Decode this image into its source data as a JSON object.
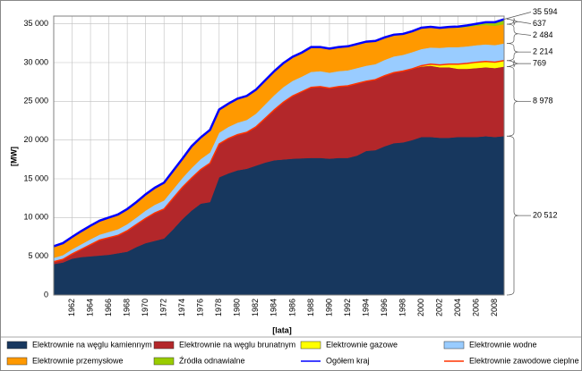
{
  "chart_data": {
    "type": "stacked_area",
    "xlabel": "[lata]",
    "ylabel": "[MW]",
    "x": [
      1960,
      1961,
      1962,
      1963,
      1964,
      1965,
      1966,
      1967,
      1968,
      1969,
      1970,
      1971,
      1972,
      1973,
      1974,
      1975,
      1976,
      1977,
      1978,
      1979,
      1980,
      1981,
      1982,
      1983,
      1984,
      1985,
      1986,
      1987,
      1988,
      1989,
      1990,
      1991,
      1992,
      1993,
      1994,
      1995,
      1996,
      1997,
      1998,
      1999,
      2000,
      2001,
      2002,
      2003,
      2004,
      2005,
      2006,
      2007,
      2008,
      2009
    ],
    "xlim": [
      1960,
      2009
    ],
    "xticks": [
      1962,
      1964,
      1966,
      1968,
      1970,
      1972,
      1974,
      1976,
      1978,
      1980,
      1982,
      1984,
      1986,
      1988,
      1990,
      1992,
      1994,
      1996,
      1998,
      2000,
      2002,
      2004,
      2006,
      2008
    ],
    "ylim": [
      0,
      36000
    ],
    "yticks": [
      0,
      {
        "value": 5000,
        "label": "5 000"
      },
      {
        "value": 10000,
        "label": "10 000"
      },
      {
        "value": 15000,
        "label": "15 000"
      },
      {
        "value": 20000,
        "label": "20 000"
      },
      {
        "value": 25000,
        "label": "25 000"
      },
      {
        "value": 30000,
        "label": "30 000"
      },
      {
        "value": 35000,
        "label": "35 000"
      }
    ],
    "grid": true,
    "series": [
      {
        "name": "Elektrownie na węglu kamiennym",
        "color": "#17375e",
        "end_label": "20 512",
        "values": [
          4000,
          4200,
          4700,
          4900,
          5000,
          5100,
          5200,
          5400,
          5600,
          6200,
          6700,
          7000,
          7300,
          8500,
          9800,
          10900,
          11800,
          12000,
          15200,
          15700,
          16100,
          16300,
          16700,
          17100,
          17400,
          17500,
          17600,
          17650,
          17700,
          17700,
          17600,
          17700,
          17700,
          18000,
          18600,
          18700,
          19200,
          19600,
          19700,
          20000,
          20400,
          20400,
          20300,
          20300,
          20400,
          20400,
          20400,
          20500,
          20400,
          20512
        ]
      },
      {
        "name": "Elektrownie na węglu brunatnym",
        "color": "#b3272a",
        "end_label": "8 978",
        "values": [
          300,
          400,
          600,
          1000,
          1500,
          2000,
          2200,
          2300,
          2700,
          2900,
          3200,
          3600,
          3800,
          4000,
          4100,
          4200,
          4400,
          5000,
          4300,
          4500,
          4600,
          4700,
          5000,
          5700,
          6500,
          7400,
          8100,
          8600,
          9100,
          9200,
          9100,
          9200,
          9300,
          9300,
          9000,
          9100,
          9100,
          9100,
          9200,
          9200,
          9100,
          9200,
          9100,
          9100,
          8800,
          8800,
          8900,
          8900,
          8900,
          8978
        ]
      },
      {
        "name": "Elektrownie gazowe",
        "color": "#ffff00",
        "end_label": "769",
        "values": [
          0,
          0,
          0,
          0,
          0,
          0,
          0,
          0,
          0,
          0,
          0,
          0,
          0,
          0,
          0,
          0,
          0,
          0,
          0,
          0,
          0,
          0,
          0,
          0,
          0,
          0,
          0,
          0,
          0,
          0,
          0,
          0,
          0,
          0,
          0,
          0,
          0,
          0,
          0,
          0,
          100,
          200,
          300,
          400,
          600,
          700,
          750,
          750,
          760,
          769
        ]
      },
      {
        "name": "Elektrownie wodne",
        "color": "#99ccff",
        "end_label": "2 214",
        "values": [
          500,
          550,
          600,
          650,
          700,
          700,
          750,
          800,
          850,
          900,
          1000,
          1050,
          1100,
          1150,
          1200,
          1300,
          1350,
          1400,
          1450,
          1500,
          1550,
          1600,
          1700,
          1800,
          1900,
          1950,
          1950,
          1950,
          2000,
          2000,
          2000,
          2000,
          2000,
          2000,
          2000,
          2000,
          2050,
          2100,
          2100,
          2150,
          2150,
          2150,
          2200,
          2200,
          2200,
          2200,
          2200,
          2200,
          2200,
          2214
        ]
      },
      {
        "name": "Elektrownie przemysłowe",
        "color": "#ff9900",
        "end_label": "2 484",
        "values": [
          1500,
          1550,
          1600,
          1700,
          1750,
          1800,
          1850,
          1900,
          1950,
          2000,
          2100,
          2200,
          2300,
          2400,
          2500,
          2800,
          2800,
          2900,
          3000,
          3000,
          3100,
          3100,
          3100,
          3100,
          3100,
          3100,
          3100,
          3100,
          3200,
          3100,
          3100,
          3100,
          3100,
          3100,
          3100,
          3000,
          2900,
          2800,
          2700,
          2700,
          2700,
          2600,
          2500,
          2500,
          2500,
          2500,
          2500,
          2500,
          2500,
          2484
        ]
      },
      {
        "name": "Źródła odnawialne",
        "color": "#99cc00",
        "end_label": "637",
        "values": [
          0,
          0,
          0,
          0,
          0,
          0,
          0,
          0,
          0,
          0,
          0,
          0,
          0,
          0,
          0,
          0,
          0,
          0,
          0,
          0,
          0,
          0,
          0,
          0,
          0,
          0,
          0,
          0,
          0,
          0,
          0,
          0,
          0,
          0,
          0,
          0,
          0,
          0,
          0,
          0,
          50,
          60,
          80,
          100,
          150,
          200,
          250,
          350,
          450,
          637
        ]
      }
    ],
    "lines": [
      {
        "name": "Ogółem kraj",
        "color": "#0000ff",
        "stack": 6,
        "end_label": {
          "value": 35594,
          "label": "35 594"
        }
      },
      {
        "name": "Elektrownie zawodowe cieplne",
        "color": "#ff3300",
        "stack": 3
      }
    ]
  }
}
